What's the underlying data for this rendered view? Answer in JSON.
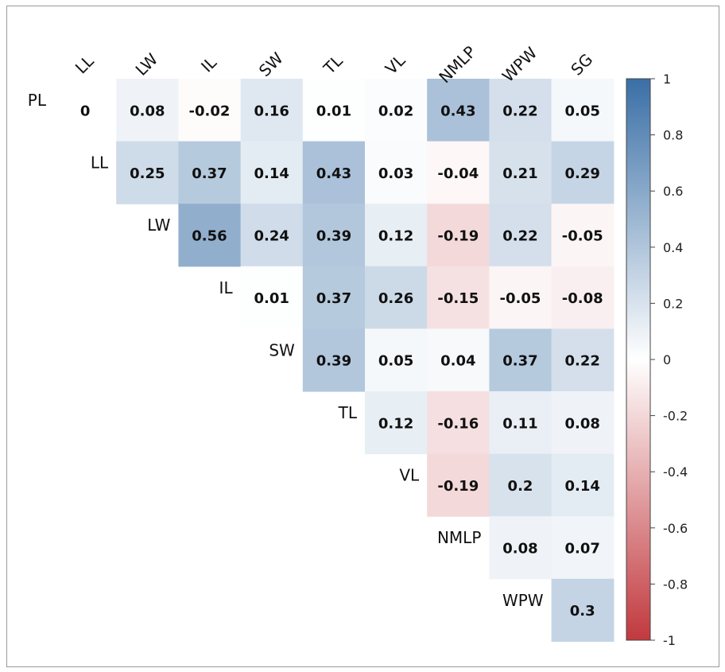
{
  "chart_data": {
    "type": "heatmap",
    "title": "",
    "xlabel": "",
    "ylabel": "",
    "columns": [
      "LL",
      "LW",
      "IL",
      "SW",
      "TL",
      "VL",
      "NMLP",
      "WPW",
      "SG"
    ],
    "rows": [
      "PL",
      "LL",
      "LW",
      "IL",
      "SW",
      "TL",
      "VL",
      "NMLP",
      "WPW"
    ],
    "matrix": [
      [
        0,
        0.08,
        -0.02,
        0.16,
        0.01,
        0.02,
        0.43,
        0.22,
        0.05
      ],
      [
        null,
        0.25,
        0.37,
        0.14,
        0.43,
        0.03,
        -0.04,
        0.21,
        0.29
      ],
      [
        null,
        null,
        0.56,
        0.24,
        0.39,
        0.12,
        -0.19,
        0.22,
        -0.05
      ],
      [
        null,
        null,
        null,
        0.01,
        0.37,
        0.26,
        -0.15,
        -0.05,
        -0.08
      ],
      [
        null,
        null,
        null,
        null,
        0.39,
        0.05,
        0.04,
        0.37,
        0.22
      ],
      [
        null,
        null,
        null,
        null,
        null,
        0.12,
        -0.16,
        0.11,
        0.08
      ],
      [
        null,
        null,
        null,
        null,
        null,
        null,
        -0.19,
        0.2,
        0.14
      ],
      [
        null,
        null,
        null,
        null,
        null,
        null,
        null,
        0.08,
        0.07
      ],
      [
        null,
        null,
        null,
        null,
        null,
        null,
        null,
        null,
        0.3
      ]
    ],
    "colorbar": {
      "range": [
        -1,
        1
      ],
      "ticks": [
        "1",
        "0.8",
        "0.6",
        "0.4",
        "0.2",
        "0",
        "-0.2",
        "-0.4",
        "-0.6",
        "-0.8",
        "-1"
      ],
      "colormap": "RdBu",
      "colors": {
        "negative": "#c1393e",
        "mid": "#ffffff",
        "positive": "#3a6fa6"
      }
    }
  }
}
